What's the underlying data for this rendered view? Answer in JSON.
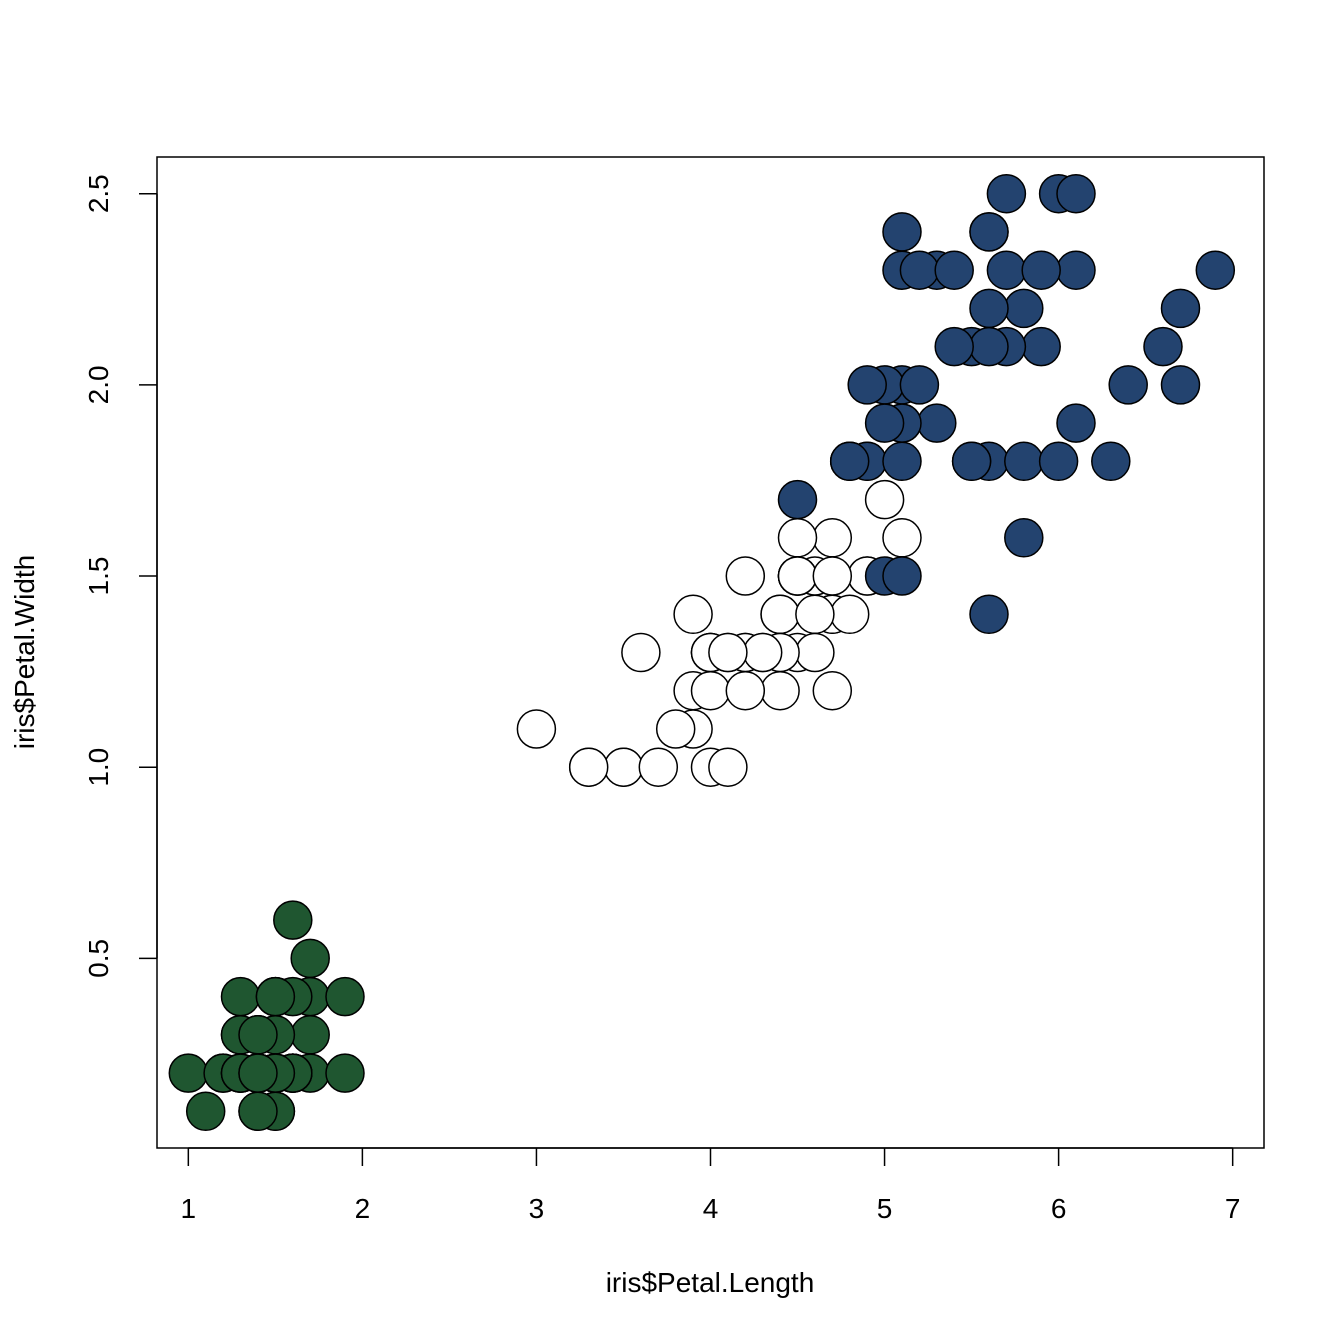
{
  "chart_data": {
    "type": "scatter",
    "title": "",
    "xlabel": "iris$Petal.Length",
    "ylabel": "iris$Petal.Width",
    "xlim": [
      0.82,
      7.18
    ],
    "ylim": [
      0.004,
      2.596
    ],
    "xticks": [
      1,
      2,
      3,
      4,
      5,
      6,
      7
    ],
    "yticks": [
      0.5,
      1.0,
      1.5,
      2.0,
      2.5
    ],
    "xtick_labels": [
      "1",
      "2",
      "3",
      "4",
      "5",
      "6",
      "7"
    ],
    "ytick_labels": [
      "0.5",
      "1.0",
      "1.5",
      "2.0",
      "2.5"
    ],
    "grid": false,
    "legend": "none",
    "series": [
      {
        "color": "#1f5630",
        "points": [
          [
            1.4,
            0.2
          ],
          [
            1.4,
            0.2
          ],
          [
            1.3,
            0.2
          ],
          [
            1.5,
            0.2
          ],
          [
            1.4,
            0.2
          ],
          [
            1.7,
            0.4
          ],
          [
            1.4,
            0.3
          ],
          [
            1.5,
            0.2
          ],
          [
            1.4,
            0.2
          ],
          [
            1.5,
            0.1
          ],
          [
            1.5,
            0.2
          ],
          [
            1.6,
            0.2
          ],
          [
            1.4,
            0.1
          ],
          [
            1.1,
            0.1
          ],
          [
            1.2,
            0.2
          ],
          [
            1.5,
            0.4
          ],
          [
            1.3,
            0.4
          ],
          [
            1.4,
            0.3
          ],
          [
            1.7,
            0.3
          ],
          [
            1.5,
            0.3
          ],
          [
            1.7,
            0.2
          ],
          [
            1.5,
            0.4
          ],
          [
            1.0,
            0.2
          ],
          [
            1.7,
            0.5
          ],
          [
            1.9,
            0.2
          ],
          [
            1.6,
            0.2
          ],
          [
            1.6,
            0.4
          ],
          [
            1.5,
            0.2
          ],
          [
            1.4,
            0.2
          ],
          [
            1.6,
            0.2
          ],
          [
            1.6,
            0.2
          ],
          [
            1.5,
            0.4
          ],
          [
            1.5,
            0.1
          ],
          [
            1.4,
            0.2
          ],
          [
            1.5,
            0.2
          ],
          [
            1.2,
            0.2
          ],
          [
            1.3,
            0.2
          ],
          [
            1.4,
            0.1
          ],
          [
            1.3,
            0.2
          ],
          [
            1.5,
            0.2
          ],
          [
            1.3,
            0.3
          ],
          [
            1.3,
            0.3
          ],
          [
            1.3,
            0.2
          ],
          [
            1.6,
            0.6
          ],
          [
            1.9,
            0.4
          ],
          [
            1.4,
            0.3
          ],
          [
            1.6,
            0.2
          ],
          [
            1.4,
            0.2
          ],
          [
            1.5,
            0.2
          ],
          [
            1.4,
            0.2
          ]
        ]
      },
      {
        "color": "#ffffff",
        "points": [
          [
            4.7,
            1.4
          ],
          [
            4.5,
            1.5
          ],
          [
            4.9,
            1.5
          ],
          [
            4.0,
            1.3
          ],
          [
            4.6,
            1.5
          ],
          [
            4.5,
            1.3
          ],
          [
            4.7,
            1.6
          ],
          [
            3.3,
            1.0
          ],
          [
            4.6,
            1.3
          ],
          [
            3.9,
            1.4
          ],
          [
            3.5,
            1.0
          ],
          [
            4.2,
            1.5
          ],
          [
            4.0,
            1.0
          ],
          [
            4.7,
            1.4
          ],
          [
            3.6,
            1.3
          ],
          [
            4.4,
            1.4
          ],
          [
            4.5,
            1.5
          ],
          [
            4.1,
            1.0
          ],
          [
            4.5,
            1.5
          ],
          [
            3.9,
            1.1
          ],
          [
            4.8,
            1.8
          ],
          [
            4.0,
            1.3
          ],
          [
            4.9,
            1.5
          ],
          [
            4.7,
            1.2
          ],
          [
            4.3,
            1.3
          ],
          [
            4.4,
            1.4
          ],
          [
            4.8,
            1.4
          ],
          [
            5.0,
            1.7
          ],
          [
            4.5,
            1.5
          ],
          [
            3.5,
            1.0
          ],
          [
            3.8,
            1.1
          ],
          [
            3.7,
            1.0
          ],
          [
            3.9,
            1.2
          ],
          [
            5.1,
            1.6
          ],
          [
            4.5,
            1.5
          ],
          [
            4.5,
            1.6
          ],
          [
            4.7,
            1.5
          ],
          [
            4.4,
            1.3
          ],
          [
            4.1,
            1.3
          ],
          [
            4.0,
            1.3
          ],
          [
            4.4,
            1.2
          ],
          [
            4.6,
            1.4
          ],
          [
            4.0,
            1.2
          ],
          [
            3.3,
            1.0
          ],
          [
            4.2,
            1.3
          ],
          [
            4.2,
            1.2
          ],
          [
            4.2,
            1.3
          ],
          [
            4.3,
            1.3
          ],
          [
            3.0,
            1.1
          ],
          [
            4.1,
            1.3
          ]
        ]
      },
      {
        "color": "#23436f",
        "points": [
          [
            6.0,
            2.5
          ],
          [
            5.1,
            1.9
          ],
          [
            5.9,
            2.1
          ],
          [
            5.6,
            1.8
          ],
          [
            5.8,
            2.2
          ],
          [
            6.6,
            2.1
          ],
          [
            4.5,
            1.7
          ],
          [
            6.3,
            1.8
          ],
          [
            5.8,
            1.8
          ],
          [
            6.1,
            2.5
          ],
          [
            5.1,
            2.0
          ],
          [
            5.3,
            1.9
          ],
          [
            5.5,
            2.1
          ],
          [
            5.0,
            2.0
          ],
          [
            5.1,
            2.4
          ],
          [
            5.3,
            2.3
          ],
          [
            5.5,
            1.8
          ],
          [
            6.7,
            2.2
          ],
          [
            6.9,
            2.3
          ],
          [
            5.0,
            1.5
          ],
          [
            5.7,
            2.3
          ],
          [
            4.9,
            2.0
          ],
          [
            6.7,
            2.0
          ],
          [
            4.9,
            1.8
          ],
          [
            5.7,
            2.1
          ],
          [
            6.0,
            1.8
          ],
          [
            4.8,
            1.8
          ],
          [
            4.9,
            1.8
          ],
          [
            5.6,
            2.1
          ],
          [
            5.8,
            1.6
          ],
          [
            6.1,
            1.9
          ],
          [
            6.4,
            2.0
          ],
          [
            5.6,
            2.2
          ],
          [
            5.1,
            1.5
          ],
          [
            5.6,
            1.4
          ],
          [
            6.1,
            2.3
          ],
          [
            5.6,
            2.4
          ],
          [
            5.5,
            1.8
          ],
          [
            4.8,
            1.8
          ],
          [
            5.4,
            2.1
          ],
          [
            5.6,
            2.4
          ],
          [
            5.1,
            2.3
          ],
          [
            5.1,
            1.9
          ],
          [
            5.9,
            2.3
          ],
          [
            5.7,
            2.5
          ],
          [
            5.2,
            2.3
          ],
          [
            5.0,
            1.9
          ],
          [
            5.2,
            2.0
          ],
          [
            5.4,
            2.3
          ],
          [
            5.1,
            1.8
          ]
        ]
      }
    ]
  }
}
